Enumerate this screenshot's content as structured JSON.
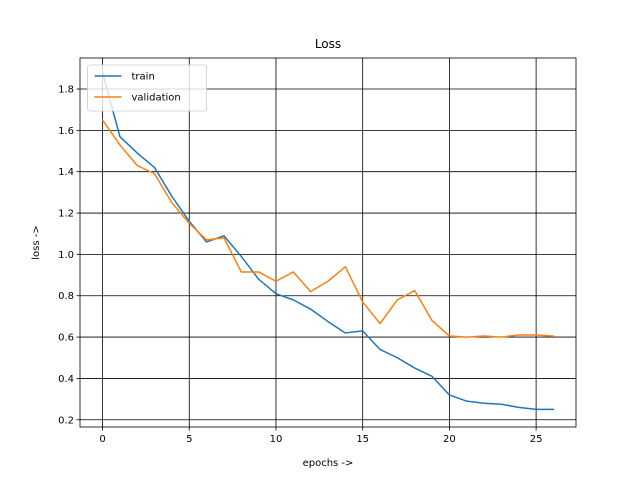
{
  "chart_data": {
    "type": "line",
    "title": "Loss",
    "xlabel": "epochs ->",
    "ylabel": "loss ->",
    "xlim": [
      -1.3,
      27.3
    ],
    "ylim": [
      0.165,
      1.95
    ],
    "xticks": [
      0,
      5,
      10,
      15,
      20,
      25
    ],
    "yticks": [
      0.2,
      0.4,
      0.6,
      0.8,
      1.0,
      1.2,
      1.4,
      1.6,
      1.8
    ],
    "ytick_labels": [
      "0.2",
      "0.4",
      "0.6",
      "0.8",
      "1.0",
      "1.2",
      "1.4",
      "1.6",
      "1.8"
    ],
    "grid": true,
    "grid_color": "#000000",
    "legend_position": "top-left",
    "x": [
      0,
      1,
      2,
      3,
      4,
      5,
      6,
      7,
      8,
      9,
      10,
      11,
      12,
      13,
      14,
      15,
      16,
      17,
      18,
      19,
      20,
      21,
      22,
      23,
      24,
      25,
      26
    ],
    "series": [
      {
        "name": "train",
        "color": "#1f77b4",
        "values": [
          1.88,
          1.57,
          1.49,
          1.42,
          1.28,
          1.16,
          1.06,
          1.09,
          0.99,
          0.88,
          0.81,
          0.78,
          0.735,
          0.675,
          0.62,
          0.63,
          0.54,
          0.5,
          0.45,
          0.41,
          0.32,
          0.29,
          0.28,
          0.275,
          0.26,
          0.25,
          0.25
        ]
      },
      {
        "name": "validation",
        "color": "#ff7f0e",
        "values": [
          1.65,
          1.53,
          1.43,
          1.39,
          1.25,
          1.15,
          1.07,
          1.08,
          0.915,
          0.915,
          0.87,
          0.915,
          0.82,
          0.87,
          0.94,
          0.77,
          0.665,
          0.78,
          0.825,
          0.68,
          0.605,
          0.6,
          0.605,
          0.6,
          0.61,
          0.61,
          0.605
        ]
      }
    ]
  }
}
